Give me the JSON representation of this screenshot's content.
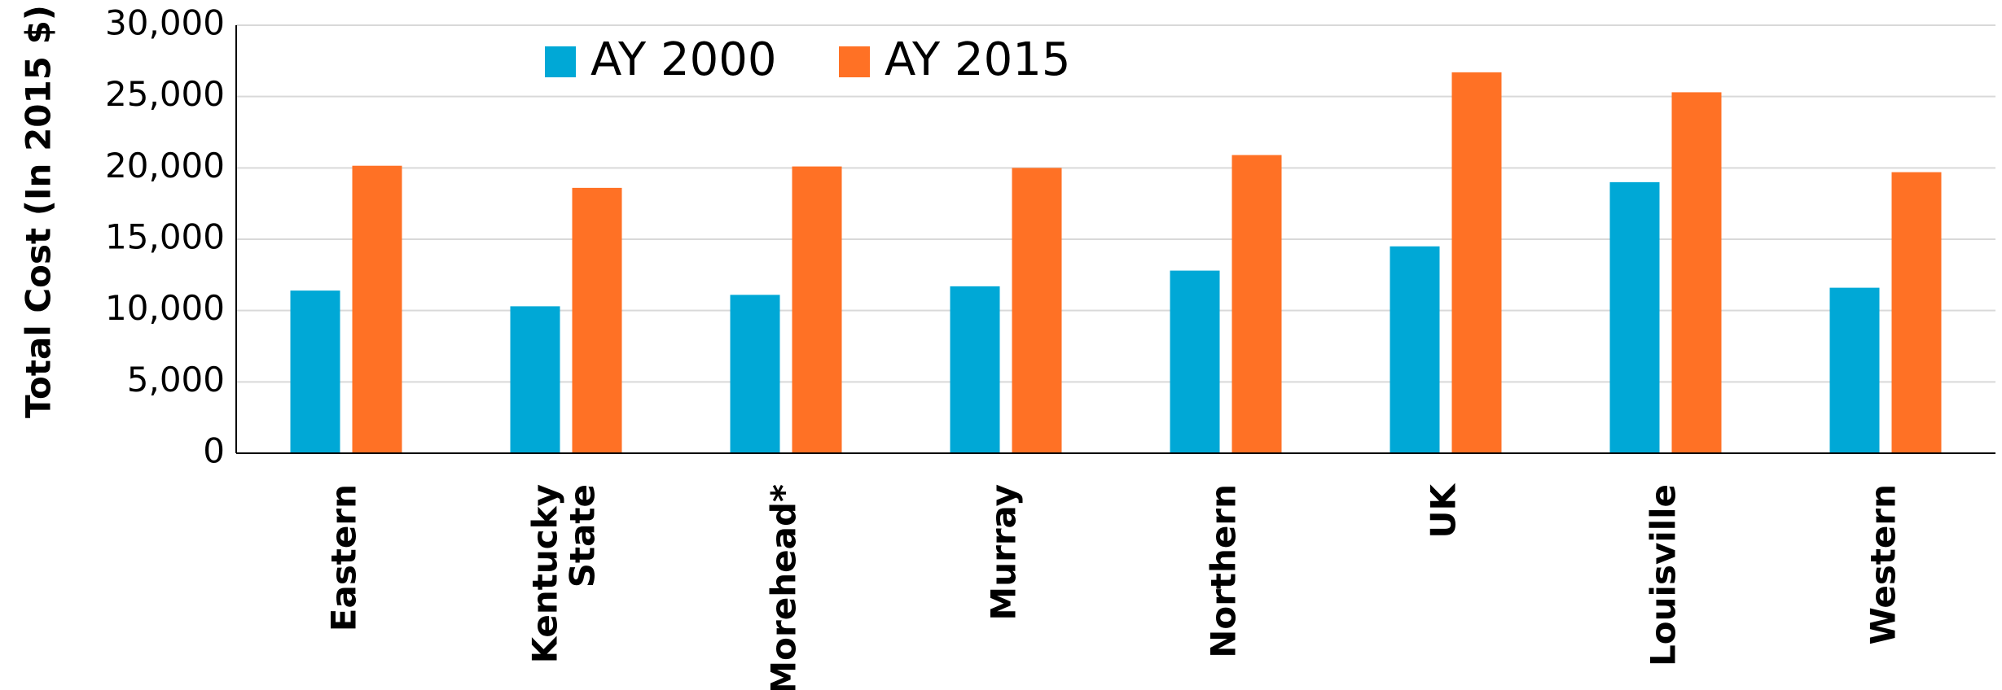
{
  "chart_data": {
    "type": "bar",
    "ylabel": "Total Cost (In 2015 $)",
    "categories": [
      "Eastern",
      "Kentucky State",
      "Morehead*",
      "Murray",
      "Northern",
      "UK",
      "Louisville",
      "Western"
    ],
    "series": [
      {
        "name": "AY 2000",
        "color": "#00a8d6",
        "values": [
          11400,
          10300,
          11100,
          11700,
          12800,
          14500,
          19000,
          11600
        ]
      },
      {
        "name": "AY 2015",
        "color": "#ff7125",
        "values": [
          20150,
          18600,
          20100,
          20000,
          20900,
          26700,
          25300,
          19700
        ]
      }
    ],
    "ylim": [
      0,
      30000
    ],
    "yticks": [
      0,
      {
        "value": 5000,
        "label": "5,000"
      },
      {
        "value": 10000,
        "label": "10,000"
      },
      {
        "value": 15000,
        "label": "15,000"
      },
      {
        "value": 20000,
        "label": "20,000"
      },
      {
        "value": 25000,
        "label": "25,000"
      },
      {
        "value": 30000,
        "label": "30,000"
      }
    ],
    "grid": true,
    "legend": "top"
  }
}
